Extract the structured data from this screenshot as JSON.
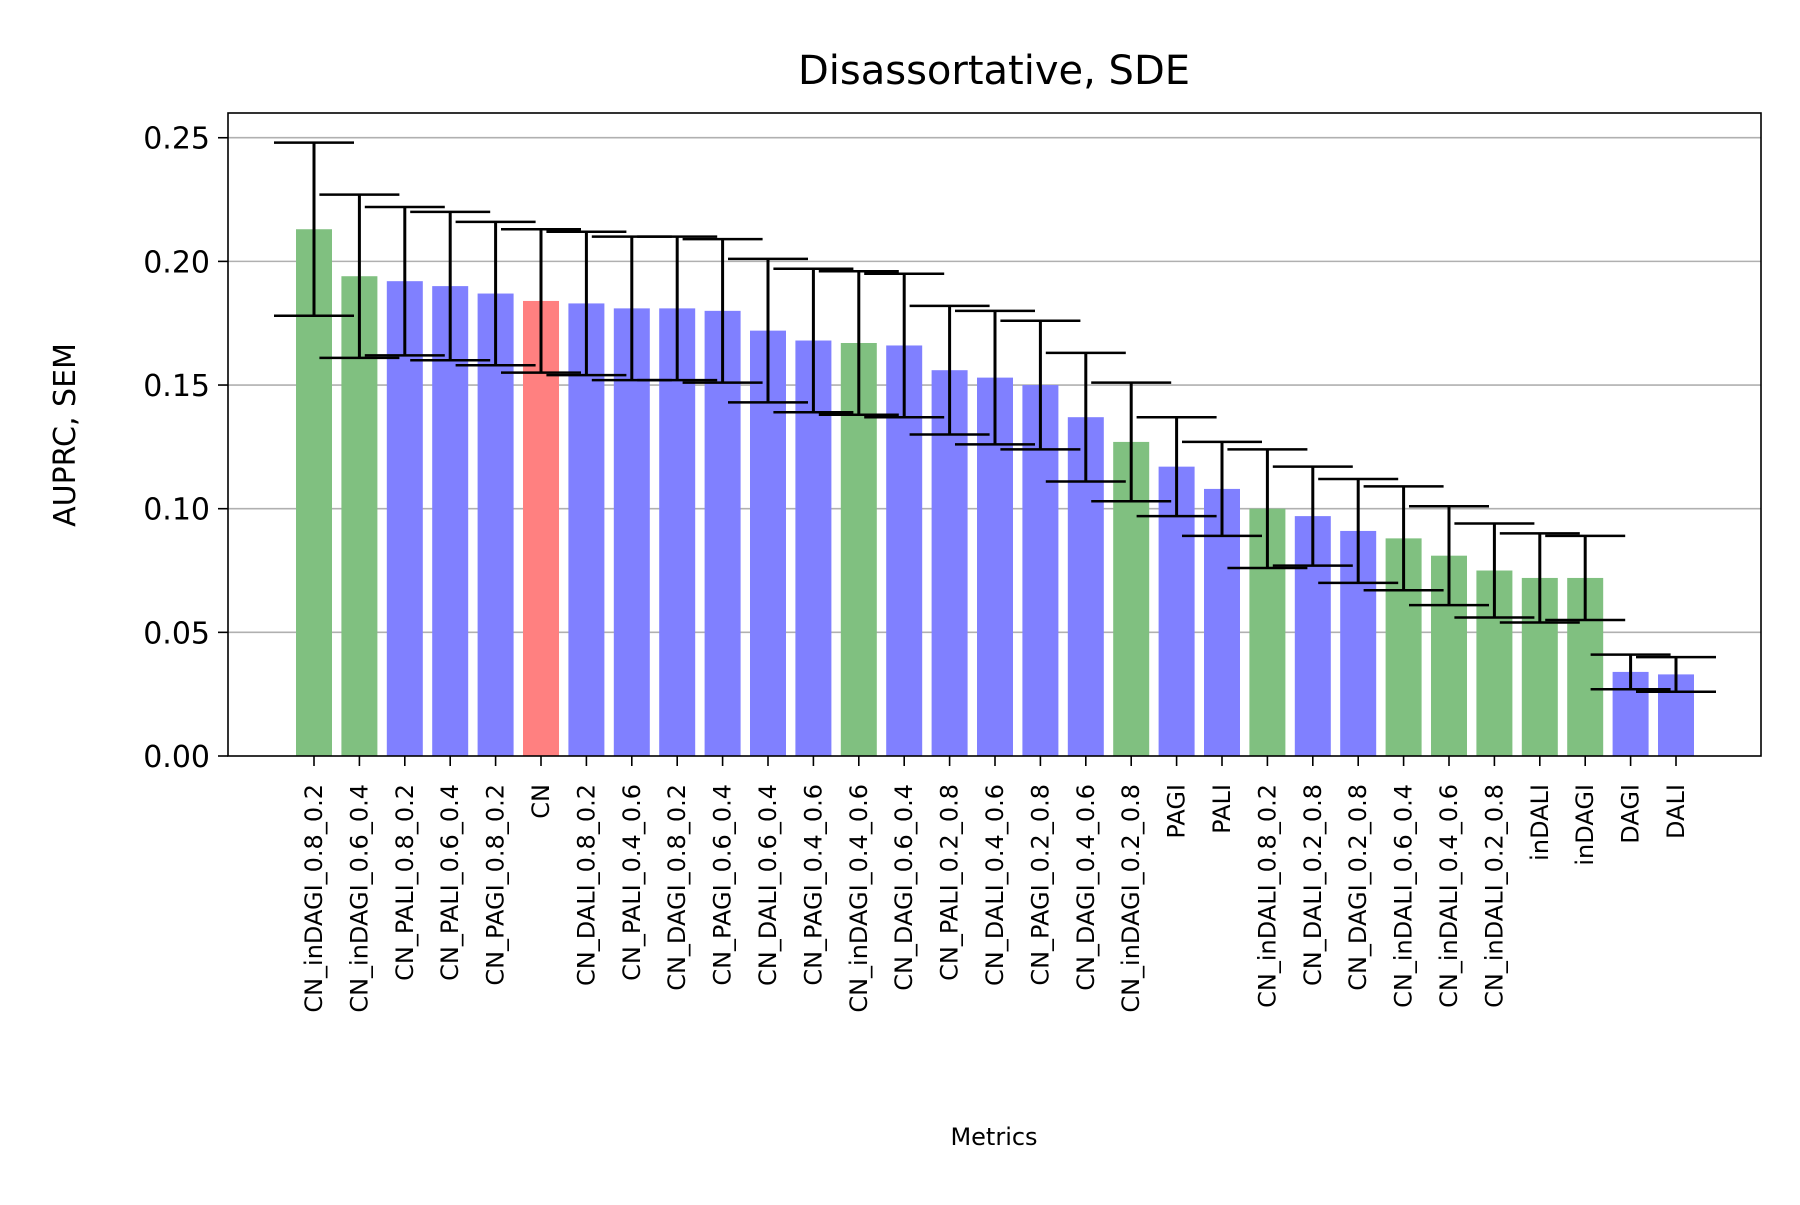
{
  "chart_data": {
    "type": "bar",
    "title": "Disassortative, SDE",
    "xlabel": "Metrics",
    "ylabel": "AUPRC, SEM",
    "ylim": [
      0,
      0.26
    ],
    "yticks": [
      0.0,
      0.05,
      0.1,
      0.15,
      0.2,
      0.25
    ],
    "ytick_labels": [
      "0.00",
      "0.05",
      "0.10",
      "0.15",
      "0.20",
      "0.25"
    ],
    "grid": "horizontal",
    "colors": {
      "green": "#80c080",
      "blue": "#8080ff",
      "red": "#ff8080",
      "errorbar": "#000000",
      "grid": "#b0b0b0"
    },
    "categories": [
      "CN_inDAGI_0.8_0.2",
      "CN_inDAGI_0.6_0.4",
      "CN_PALI_0.8_0.2",
      "CN_PALI_0.6_0.4",
      "CN_PAGI_0.8_0.2",
      "CN",
      "CN_DALI_0.8_0.2",
      "CN_PALI_0.4_0.6",
      "CN_DAGI_0.8_0.2",
      "CN_PAGI_0.6_0.4",
      "CN_DALI_0.6_0.4",
      "CN_PAGI_0.4_0.6",
      "CN_inDAGI_0.4_0.6",
      "CN_DAGI_0.6_0.4",
      "CN_PALI_0.2_0.8",
      "CN_DALI_0.4_0.6",
      "CN_PAGI_0.2_0.8",
      "CN_DAGI_0.4_0.6",
      "CN_inDAGI_0.2_0.8",
      "PAGI",
      "PALI",
      "CN_inDALI_0.8_0.2",
      "CN_DALI_0.2_0.8",
      "CN_DAGI_0.2_0.8",
      "CN_inDALI_0.6_0.4",
      "CN_inDALI_0.4_0.6",
      "CN_inDALI_0.2_0.8",
      "inDALI",
      "inDAGI",
      "DAGI",
      "DALI"
    ],
    "values": [
      0.213,
      0.194,
      0.192,
      0.19,
      0.187,
      0.184,
      0.183,
      0.181,
      0.181,
      0.18,
      0.172,
      0.168,
      0.167,
      0.166,
      0.156,
      0.153,
      0.15,
      0.137,
      0.127,
      0.117,
      0.108,
      0.1,
      0.097,
      0.091,
      0.088,
      0.081,
      0.075,
      0.072,
      0.072,
      0.034,
      0.033
    ],
    "errors": [
      0.035,
      0.033,
      0.03,
      0.03,
      0.029,
      0.029,
      0.029,
      0.029,
      0.029,
      0.029,
      0.029,
      0.029,
      0.029,
      0.029,
      0.026,
      0.027,
      0.026,
      0.026,
      0.024,
      0.02,
      0.019,
      0.024,
      0.02,
      0.021,
      0.021,
      0.02,
      0.019,
      0.018,
      0.017,
      0.007,
      0.007
    ],
    "bar_colors": [
      "green",
      "green",
      "blue",
      "blue",
      "blue",
      "red",
      "blue",
      "blue",
      "blue",
      "blue",
      "blue",
      "blue",
      "green",
      "blue",
      "blue",
      "blue",
      "blue",
      "blue",
      "green",
      "blue",
      "blue",
      "green",
      "blue",
      "blue",
      "green",
      "green",
      "green",
      "green",
      "green",
      "blue",
      "blue"
    ]
  }
}
